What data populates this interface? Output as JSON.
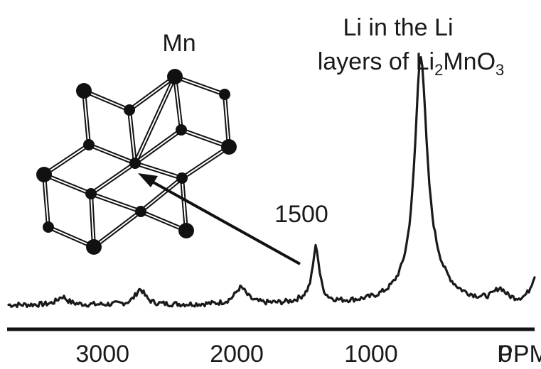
{
  "chart_data": {
    "type": "line",
    "title": "",
    "xlabel": "",
    "ylabel": "",
    "x_unit": "PPM",
    "x_reversed": true,
    "xlim": [
      3700,
      -250
    ],
    "x_ticks": [
      3000,
      2000,
      1000,
      0
    ],
    "x_tick_labels": [
      "3000",
      "2000",
      "1000",
      "0"
    ],
    "y_axis_shown": false,
    "grid": false,
    "legend": "none",
    "line_color": "#1a1a1a",
    "peaks": [
      {
        "ppm": 3300,
        "height": 0.08,
        "width": 45
      },
      {
        "ppm": 2720,
        "height": 0.15,
        "width": 45
      },
      {
        "ppm": 1970,
        "height": 0.16,
        "width": 55
      },
      {
        "ppm": 1470,
        "height": 0.04,
        "width": 90
      },
      {
        "ppm": 1410,
        "height": 0.52,
        "width": 30
      },
      {
        "ppm": 630,
        "height": 2.1,
        "width": 52
      },
      {
        "ppm": 590,
        "height": 0.35,
        "width": 150
      },
      {
        "ppm": 40,
        "height": 0.12,
        "width": 55
      },
      {
        "ppm": -230,
        "height": 0.28,
        "width": 45
      }
    ],
    "annotations": [
      {
        "id": "peak-1500",
        "text": "1500",
        "ppm": 1410
      },
      {
        "id": "peak-li",
        "line1": "Li in the Li",
        "line2_prefix": "layers of Li",
        "sub1": "2",
        "mid": "Mn",
        "sub2": "O",
        "sub3": "3",
        "ppm": 630
      },
      {
        "id": "structure",
        "text": "Mn"
      }
    ]
  }
}
